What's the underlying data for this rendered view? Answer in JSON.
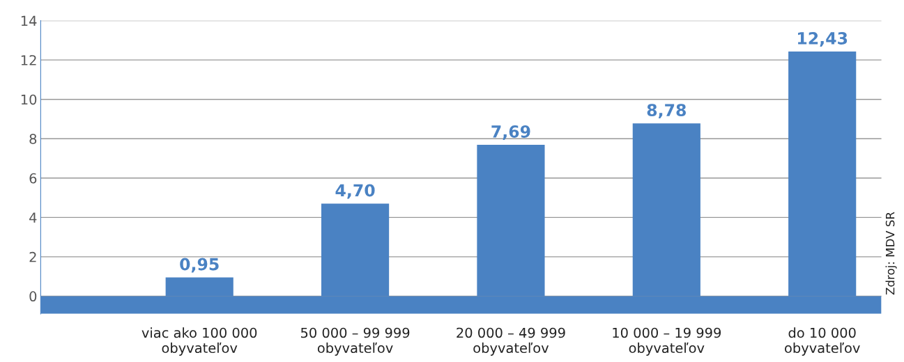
{
  "chart_data": {
    "type": "bar",
    "categories": [
      "viac ako 100 000\nobyvateľov",
      "50 000 – 99 999\nobyvateľov",
      "20 000 – 49 999\nobyvateľov",
      "10 000 – 19 999\nobyvateľov",
      "do 10 000\nobyvateľov"
    ],
    "values": [
      0.95,
      4.7,
      7.69,
      8.78,
      12.43
    ],
    "value_labels": [
      "0,95",
      "4,70",
      "7,69",
      "8,78",
      "12,43"
    ],
    "color": "#4a82c3",
    "ylim": [
      -0.9,
      14
    ],
    "yticks": [
      0,
      2,
      4,
      6,
      8,
      10,
      12,
      14
    ],
    "grid": "y",
    "annotations": [
      "Zdroj: MDV SR"
    ]
  }
}
